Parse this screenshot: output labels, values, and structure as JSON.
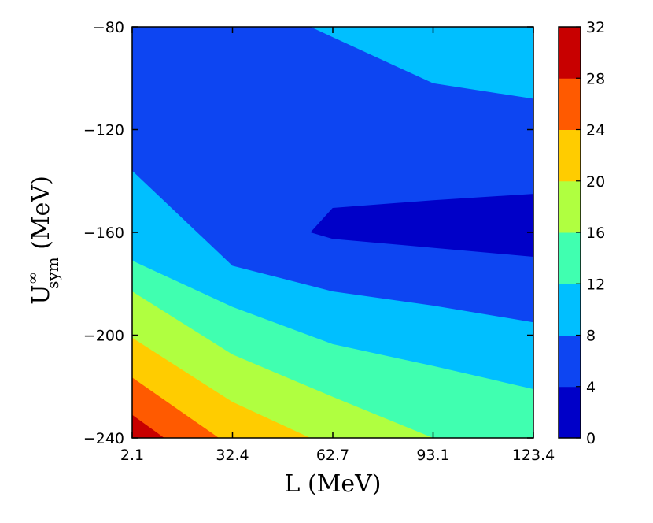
{
  "chart_data": {
    "type": "contourf",
    "xlabel": "L (MeV)",
    "ylabel": {
      "main": "U",
      "superscript": "∞",
      "subscript": "sym",
      "unit": " (MeV)"
    },
    "x_ticks": [
      "2.1",
      "32.4",
      "62.7",
      "93.1",
      "123.4"
    ],
    "y_ticks": [
      "−80",
      "−120",
      "−160",
      "−200",
      "−240"
    ],
    "xlim": [
      2.1,
      123.4
    ],
    "ylim": [
      -240,
      -80
    ],
    "colorbar": {
      "ticks": [
        "0",
        "4",
        "8",
        "12",
        "16",
        "20",
        "24",
        "28",
        "32"
      ],
      "range": [
        0,
        32
      ],
      "levels": [
        0,
        4,
        8,
        12,
        16,
        20,
        24,
        28,
        32
      ],
      "colors": [
        "#0000c8",
        "#0d45f2",
        "#00bfff",
        "#40ffb0",
        "#b0ff40",
        "#ffcc00",
        "#ff5a00",
        "#c80000"
      ]
    },
    "regions": [
      {
        "name": "0-4",
        "color_index": 0,
        "points": [
          [
            56,
            -160
          ],
          [
            62.7,
            -150.5
          ],
          [
            93.1,
            -147.5
          ],
          [
            123.4,
            -145
          ],
          [
            123.4,
            -169.5
          ],
          [
            93.1,
            -166
          ],
          [
            62.7,
            -162.5
          ]
        ]
      },
      {
        "name": "4-8",
        "color_index": 1,
        "points": [
          [
            2.1,
            -80
          ],
          [
            56,
            -80
          ],
          [
            62.7,
            -84
          ],
          [
            93.1,
            -102
          ],
          [
            123.4,
            -108
          ],
          [
            123.4,
            -195
          ],
          [
            93.1,
            -188.5
          ],
          [
            62.7,
            -183
          ],
          [
            32.4,
            -173
          ],
          [
            2.1,
            -136
          ]
        ]
      },
      {
        "name": "8-12",
        "color_index": 2,
        "points": [
          [
            2.1,
            -80
          ],
          [
            123.4,
            -80
          ],
          [
            123.4,
            -221
          ],
          [
            93.1,
            -212
          ],
          [
            62.7,
            -203.5
          ],
          [
            32.4,
            -189
          ],
          [
            2.1,
            -171
          ]
        ]
      },
      {
        "name": "12-16",
        "color_index": 3,
        "points": [
          [
            2.1,
            -80
          ],
          [
            123.4,
            -80
          ],
          [
            123.4,
            -240
          ],
          [
            93.1,
            -240
          ],
          [
            62.7,
            -224
          ],
          [
            32.4,
            -207.5
          ],
          [
            2.1,
            -183
          ]
        ]
      },
      {
        "name": "16-20",
        "color_index": 4,
        "points": [
          [
            2.1,
            -80
          ],
          [
            123.4,
            -80
          ],
          [
            123.4,
            -240
          ],
          [
            108,
            -240
          ],
          [
            93.1,
            -240
          ],
          [
            2.1,
            -240
          ]
        ]
      },
      {
        "name": "20-24",
        "color_index": 5,
        "points": [
          [
            2.1,
            -201
          ],
          [
            32.4,
            -226
          ],
          [
            56,
            -240
          ],
          [
            2.1,
            -240
          ]
        ]
      },
      {
        "name": "24-28",
        "color_index": 6,
        "points": [
          [
            2.1,
            -216.5
          ],
          [
            28.3,
            -240
          ],
          [
            2.1,
            -240
          ]
        ]
      },
      {
        "name": "28-32",
        "color_index": 7,
        "points": [
          [
            2.1,
            -231
          ],
          [
            11.8,
            -240
          ],
          [
            2.1,
            -240
          ]
        ]
      }
    ]
  }
}
